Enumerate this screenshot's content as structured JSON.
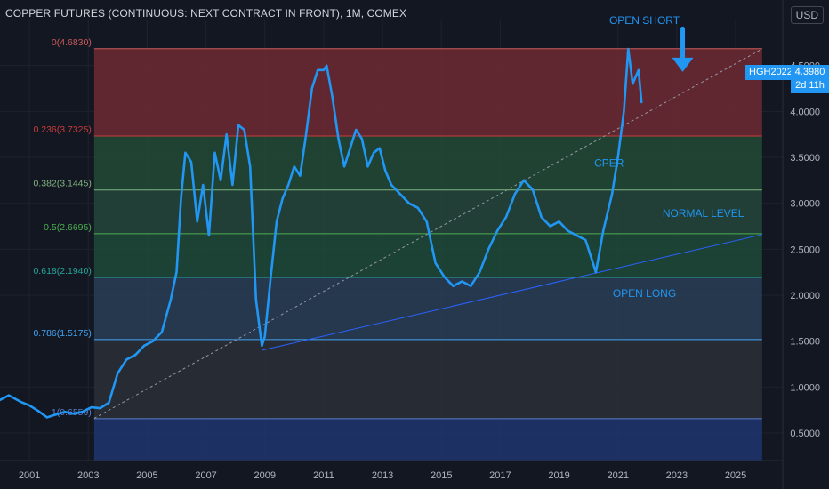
{
  "title": "COPPER FUTURES (CONTINUOUS: NEXT CONTRACT IN FRONT), 1M, COMEX",
  "currency_button": "USD",
  "symbol_tag": "HGH2022",
  "last_price": "4.3980",
  "countdown": "2d 11h",
  "colors": {
    "background": "#131722",
    "series": "#2196f3",
    "text": "#d1d4dc",
    "axis_text": "#b2b5be"
  },
  "chart_data": {
    "type": "line",
    "title": "COPPER FUTURES (CONTINUOUS: NEXT CONTRACT IN FRONT), 1M, COMEX",
    "x_ticks": [
      "2001",
      "2003",
      "2005",
      "2007",
      "2009",
      "2011",
      "2013",
      "2015",
      "2017",
      "2019",
      "2021",
      "2023",
      "2025"
    ],
    "y_ticks": [
      "0.5000",
      "1.0000",
      "1.5000",
      "2.0000",
      "2.5000",
      "3.0000",
      "3.5000",
      "4.0000",
      "4.5000"
    ],
    "ylim": [
      0.2,
      5.0
    ],
    "xlim": [
      2000.0,
      2026.6
    ],
    "grid": true,
    "series": [
      {
        "x": [
          2000.0,
          2000.3,
          2000.7,
          2001.0,
          2001.3,
          2001.6,
          2001.9,
          2002.2,
          2002.5,
          2002.8,
          2003.1,
          2003.4,
          2003.7,
          2004.0,
          2004.3,
          2004.6,
          2004.9,
          2005.2,
          2005.5,
          2005.8,
          2006.0,
          2006.15,
          2006.3,
          2006.5,
          2006.7,
          2006.9,
          2007.1,
          2007.3,
          2007.5,
          2007.7,
          2007.9,
          2008.1,
          2008.3,
          2008.5,
          2008.7,
          2008.9,
          2009.0,
          2009.2,
          2009.4,
          2009.6,
          2009.8,
          2010.0,
          2010.2,
          2010.4,
          2010.6,
          2010.8,
          2011.0,
          2011.1,
          2011.3,
          2011.5,
          2011.7,
          2011.9,
          2012.1,
          2012.3,
          2012.5,
          2012.7,
          2012.9,
          2013.1,
          2013.3,
          2013.6,
          2013.9,
          2014.2,
          2014.5,
          2014.8,
          2015.1,
          2015.4,
          2015.7,
          2016.0,
          2016.3,
          2016.6,
          2016.9,
          2017.2,
          2017.5,
          2017.8,
          2018.1,
          2018.4,
          2018.7,
          2019.0,
          2019.3,
          2019.6,
          2019.9,
          2020.1,
          2020.25,
          2020.5,
          2020.8,
          2021.0,
          2021.2,
          2021.35,
          2021.5,
          2021.7,
          2021.8
        ],
        "y": [
          0.86,
          0.91,
          0.84,
          0.8,
          0.74,
          0.67,
          0.7,
          0.73,
          0.71,
          0.73,
          0.78,
          0.77,
          0.83,
          1.15,
          1.3,
          1.35,
          1.45,
          1.5,
          1.6,
          1.95,
          2.25,
          3.05,
          3.55,
          3.45,
          2.8,
          3.2,
          2.65,
          3.55,
          3.25,
          3.75,
          3.2,
          3.85,
          3.8,
          3.4,
          1.95,
          1.45,
          1.55,
          2.2,
          2.8,
          3.05,
          3.2,
          3.4,
          3.3,
          3.75,
          4.25,
          4.45,
          4.45,
          4.5,
          4.15,
          3.7,
          3.4,
          3.6,
          3.8,
          3.7,
          3.4,
          3.55,
          3.6,
          3.35,
          3.2,
          3.1,
          3.0,
          2.95,
          2.8,
          2.35,
          2.2,
          2.1,
          2.15,
          2.1,
          2.25,
          2.5,
          2.7,
          2.85,
          3.1,
          3.25,
          3.15,
          2.85,
          2.75,
          2.8,
          2.7,
          2.65,
          2.6,
          2.4,
          2.25,
          2.7,
          3.1,
          3.5,
          4.0,
          4.68,
          4.3,
          4.45,
          4.1
        ]
      }
    ],
    "fib_levels": [
      {
        "label": "0(4.6830)",
        "value": 4.683
      },
      {
        "label": "0.236(3.7325)",
        "value": 3.7325
      },
      {
        "label": "0.382(3.1445)",
        "value": 3.1445
      },
      {
        "label": "0.5(2.6695)",
        "value": 2.6695
      },
      {
        "label": "0.618(2.1940)",
        "value": 2.194
      },
      {
        "label": "0.786(1.5175)",
        "value": 1.5175
      },
      {
        "label": "1(0.6559)",
        "value": 0.6559
      }
    ],
    "fib_fill_colors": [
      "#6e2a33",
      "#234a36",
      "#25473a",
      "#1f4a3a",
      "#2a3e55",
      "#2c2f37",
      "#1f3570"
    ],
    "fib_line_colors": [
      "#cc5a5a",
      "#cc3b3b",
      "#7fb37f",
      "#4caf50",
      "#26a69a",
      "#42a5f5",
      "#5a7ec8"
    ],
    "trendlines": [
      {
        "kind": "dashed",
        "x1": 2003.2,
        "y1": 0.66,
        "x2": 2025.9,
        "y2": 4.68
      },
      {
        "kind": "solid",
        "x1": 2008.9,
        "y1": 1.4,
        "x2": 2025.9,
        "y2": 2.66
      }
    ],
    "annotations": [
      {
        "text": "OPEN SHORT",
        "x": 2021.9,
        "y": 4.95
      },
      {
        "text": "CPER",
        "x": 2020.7,
        "y": 3.4
      },
      {
        "text": "NORMAL LEVEL",
        "x": 2023.9,
        "y": 2.85
      },
      {
        "text": "OPEN LONG",
        "x": 2021.9,
        "y": 1.98
      }
    ],
    "arrow": {
      "x": 2023.2,
      "y_top": 4.9,
      "y_bottom": 4.45
    }
  }
}
